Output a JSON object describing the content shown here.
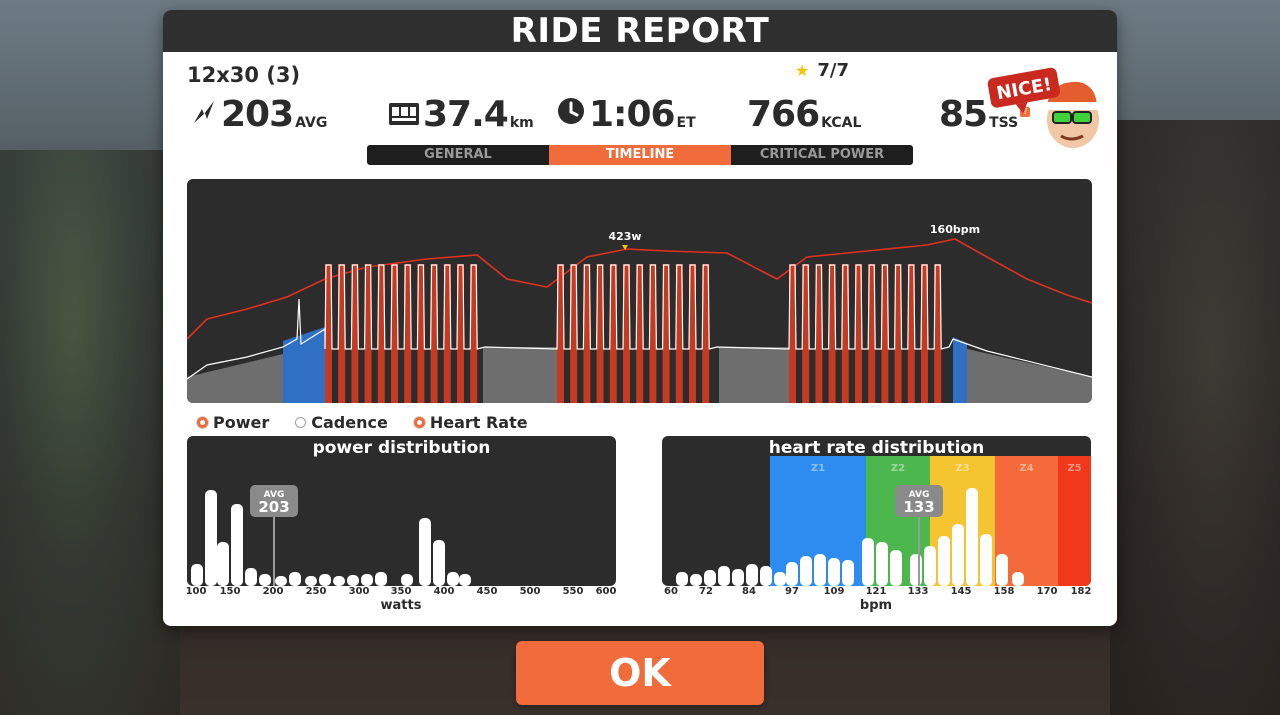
{
  "title": "RIDE REPORT",
  "workout_name": "12x30 (3)",
  "achievement": {
    "icon": "star-icon",
    "text": "7/7"
  },
  "stats": {
    "power": {
      "icon": "lightning-icon",
      "value": "203",
      "unit": "AVG"
    },
    "distance": {
      "icon": "odometer-icon",
      "value": "37.4",
      "unit": "km"
    },
    "time": {
      "icon": "clock-icon",
      "value": "1:06",
      "unit": "ET"
    },
    "calories": {
      "value": "766",
      "unit": "KCAL"
    },
    "tss": {
      "value": "85",
      "unit": "TSS",
      "info": "?"
    }
  },
  "mascot": {
    "badge": "NICE!"
  },
  "tabs": [
    {
      "label": "GENERAL",
      "active": false
    },
    {
      "label": "TIMELINE",
      "active": true
    },
    {
      "label": "CRITICAL POWER",
      "active": false
    }
  ],
  "timeline": {
    "peak_power_label": "423w",
    "peak_hr_label": "160bpm"
  },
  "legend": {
    "power": "Power",
    "cadence": "Cadence",
    "heart_rate": "Heart Rate"
  },
  "power_distribution": {
    "title": "power distribution",
    "avg_label": "AVG",
    "avg_value": "203",
    "xlabel": "watts",
    "ticks": [
      "100",
      "150",
      "200",
      "250",
      "300",
      "350",
      "400",
      "450",
      "500",
      "550",
      "600"
    ]
  },
  "hr_distribution": {
    "title": "heart rate distribution",
    "avg_label": "AVG",
    "avg_value": "133",
    "xlabel": "bpm",
    "ticks": [
      "60",
      "72",
      "84",
      "97",
      "109",
      "121",
      "133",
      "145",
      "158",
      "170",
      "182"
    ],
    "zones": [
      {
        "label": "Z1",
        "color": "#2d8cf0"
      },
      {
        "label": "Z2",
        "color": "#4cb74c"
      },
      {
        "label": "Z3",
        "color": "#f4c531"
      },
      {
        "label": "Z4",
        "color": "#f46a3b"
      },
      {
        "label": "Z5",
        "color": "#f1381a"
      }
    ]
  },
  "ok_label": "OK",
  "colors": {
    "accent": "#f26b3a",
    "panel_dark": "#2c2c2c",
    "interval_red": "#c53a21",
    "warmup_blue": "#2f6fc4",
    "endurance_gray": "#6e6e6e",
    "hr_line": "#e0301e"
  }
}
